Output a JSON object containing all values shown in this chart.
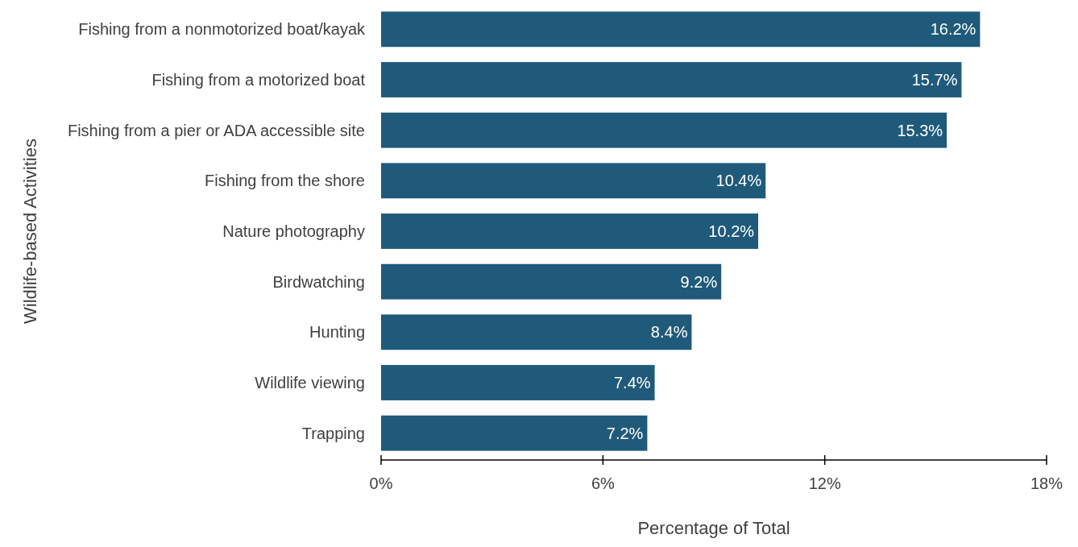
{
  "chart_data": {
    "type": "bar",
    "orientation": "horizontal",
    "xlabel": "Percentage of Total",
    "ylabel": "Wildlife-based Activities",
    "categories": [
      "Fishing from a nonmotorized boat/kayak",
      "Fishing from a motorized boat",
      "Fishing from a pier or ADA accessible site",
      "Fishing from the shore",
      "Nature photography",
      "Birdwatching",
      "Hunting",
      "Wildlife viewing",
      "Trapping"
    ],
    "values": [
      16.2,
      15.7,
      15.3,
      10.4,
      10.2,
      9.2,
      8.4,
      7.4,
      7.2
    ],
    "value_labels": [
      "16.2%",
      "15.7%",
      "15.3%",
      "10.4%",
      "10.2%",
      "9.2%",
      "8.4%",
      "7.4%",
      "7.2%"
    ],
    "color": "#1f5a7a",
    "xlim": [
      0,
      18
    ],
    "xticks": [
      {
        "value": 0,
        "label": "0%"
      },
      {
        "value": 6,
        "label": "6%"
      },
      {
        "value": 12,
        "label": "12%"
      },
      {
        "value": 18,
        "label": "18%"
      }
    ],
    "grid": false
  }
}
